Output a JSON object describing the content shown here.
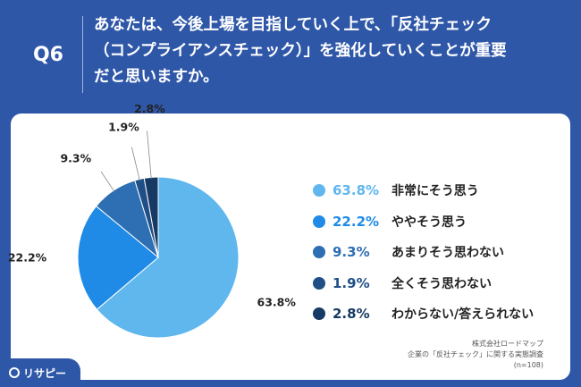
{
  "header": {
    "qlabel": "Q6",
    "question_lines": [
      "あなたは、今後上場を目指していく上で、「反社チェック",
      "（コンプライアンスチェック）」を強化していくことが重要",
      "だと思いますか。"
    ]
  },
  "colors": {
    "background": "#2f57a8",
    "card": "#ffffff"
  },
  "chart_data": {
    "type": "pie",
    "start_angle_deg": 0,
    "direction": "clockwise",
    "series": [
      {
        "name": "非常にそう思う",
        "value": 63.8,
        "label": "63.8%",
        "color": "#5fb7ee"
      },
      {
        "name": "ややそう思う",
        "value": 22.2,
        "label": "22.2%",
        "color": "#1f8be6"
      },
      {
        "name": "あまりそう思わない",
        "value": 9.3,
        "label": "9.3%",
        "color": "#2e6eb3"
      },
      {
        "name": "全くそう思わない",
        "value": 1.9,
        "label": "1.9%",
        "color": "#1f4f86"
      },
      {
        "name": "わからない/答えられない",
        "value": 2.8,
        "label": "2.8%",
        "color": "#163a63"
      }
    ]
  },
  "footer": {
    "lines": [
      "株式会社ロードマップ",
      "企業の「反社チェック」に関する実態調査",
      "(n=108)"
    ]
  },
  "logo": {
    "text": "リサピー"
  }
}
